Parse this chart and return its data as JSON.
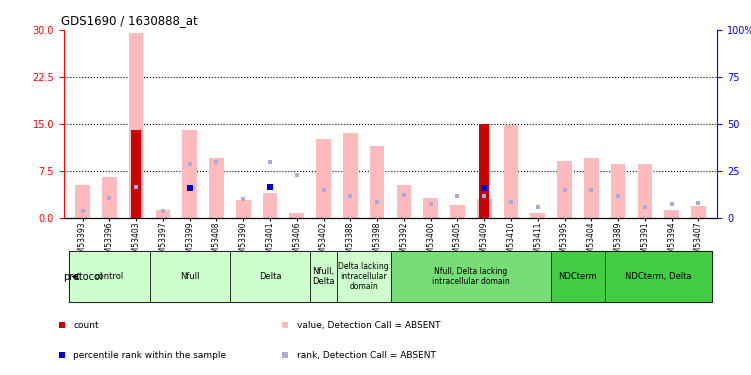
{
  "title": "GDS1690 / 1630888_at",
  "samples": [
    "GSM53393",
    "GSM53396",
    "GSM53403",
    "GSM53397",
    "GSM53399",
    "GSM53408",
    "GSM53390",
    "GSM53401",
    "GSM53406",
    "GSM53402",
    "GSM53388",
    "GSM53398",
    "GSM53392",
    "GSM53400",
    "GSM53405",
    "GSM53409",
    "GSM53410",
    "GSM53411",
    "GSM53395",
    "GSM53404",
    "GSM53389",
    "GSM53391",
    "GSM53394",
    "GSM53407"
  ],
  "value_absent": [
    5.2,
    6.5,
    29.5,
    1.2,
    14.0,
    9.5,
    2.8,
    4.0,
    0.8,
    12.5,
    13.5,
    11.5,
    5.2,
    3.2,
    2.0,
    3.0,
    14.8,
    0.8,
    9.0,
    9.5,
    8.5,
    8.5,
    1.2,
    1.8
  ],
  "rank_absent": [
    3.5,
    10.5,
    16.5,
    3.5,
    28.5,
    29.5,
    10.0,
    29.5,
    22.5,
    14.5,
    11.5,
    8.5,
    12.0,
    7.0,
    11.5,
    11.5,
    8.5,
    5.5,
    14.5,
    14.5,
    11.5,
    5.5,
    7.0,
    7.5
  ],
  "count": [
    null,
    null,
    14.0,
    null,
    null,
    null,
    null,
    null,
    null,
    null,
    null,
    null,
    null,
    null,
    null,
    15.0,
    null,
    null,
    null,
    null,
    null,
    null,
    null,
    null
  ],
  "percentile": [
    null,
    null,
    null,
    null,
    15.5,
    null,
    null,
    16.2,
    null,
    null,
    null,
    null,
    null,
    null,
    null,
    15.8,
    null,
    null,
    null,
    null,
    null,
    null,
    null,
    null
  ],
  "protocol_groups": [
    {
      "label": "control",
      "start": 0,
      "end": 3,
      "fc": "#ccffcc"
    },
    {
      "label": "Nfull",
      "start": 3,
      "end": 6,
      "fc": "#ccffcc"
    },
    {
      "label": "Delta",
      "start": 6,
      "end": 9,
      "fc": "#ccffcc"
    },
    {
      "label": "Nfull,\nDelta",
      "start": 9,
      "end": 10,
      "fc": "#ccffcc"
    },
    {
      "label": "Delta lacking\nintracellular\ndomain",
      "start": 10,
      "end": 12,
      "fc": "#ccffcc"
    },
    {
      "label": "Nfull, Delta lacking\nintracellular domain",
      "start": 12,
      "end": 18,
      "fc": "#77dd77"
    },
    {
      "label": "NDCterm",
      "start": 18,
      "end": 20,
      "fc": "#44cc44"
    },
    {
      "label": "NDCterm, Delta",
      "start": 20,
      "end": 24,
      "fc": "#44cc44"
    }
  ],
  "ylim_left": [
    0,
    30
  ],
  "ylim_right": [
    0,
    100
  ],
  "yticks_left": [
    0,
    7.5,
    15,
    22.5,
    30
  ],
  "yticks_right": [
    0,
    25,
    50,
    75,
    100
  ],
  "color_value_absent": "#ffbbbb",
  "color_rank_absent": "#aaaadd",
  "color_count": "#cc0000",
  "color_percentile": "#0000cc",
  "bar_width": 0.55
}
